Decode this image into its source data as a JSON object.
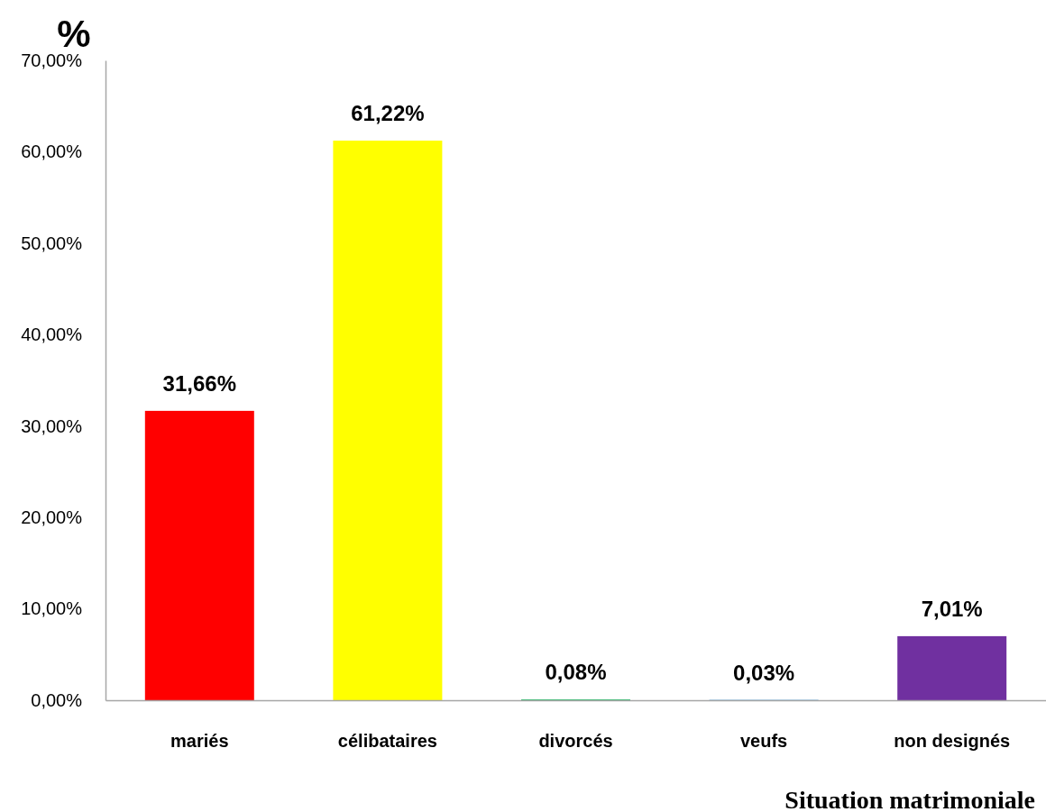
{
  "chart_data": {
    "type": "bar",
    "ylabel": "%",
    "xlabel": "Situation matrimoniale",
    "categories": [
      "mariés",
      "célibataires",
      "divorcés",
      "veufs",
      "non designés"
    ],
    "values": [
      31.66,
      61.22,
      0.08,
      0.03,
      7.01
    ],
    "colors": [
      "#ff0000",
      "#ffff00",
      "#00b050",
      "#0070c0",
      "#7030a0"
    ],
    "value_labels": [
      "31,66%",
      "61,22%",
      "0,08%",
      "0,03%",
      "7,01%"
    ],
    "ylim": [
      0,
      70
    ],
    "yticks": [
      {
        "value": 0,
        "label": "0,00%"
      },
      {
        "value": 10,
        "label": "10,00%"
      },
      {
        "value": 20,
        "label": "20,00%"
      },
      {
        "value": 30,
        "label": "30,00%"
      },
      {
        "value": 40,
        "label": "40,00%"
      },
      {
        "value": 50,
        "label": "50,00%"
      },
      {
        "value": 60,
        "label": "60,00%"
      },
      {
        "value": 70,
        "label": "70,00%"
      }
    ]
  }
}
